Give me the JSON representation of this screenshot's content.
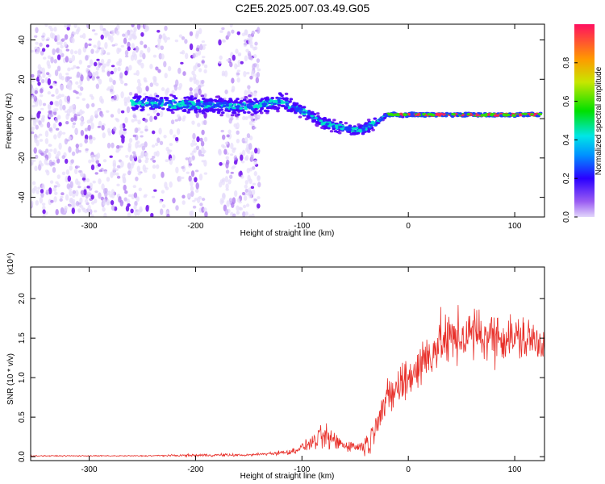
{
  "title": "C2E5.2025.007.03.49.G05",
  "chart_data": [
    {
      "type": "heatmap",
      "xlabel": "Height of straight line (km)",
      "ylabel": "Frequency (Hz)",
      "xlim": [
        -355,
        128
      ],
      "ylim": [
        -50,
        48
      ],
      "xticks": [
        -300,
        -200,
        -100,
        0,
        100
      ],
      "yticks": [
        -40,
        -20,
        0,
        20,
        40
      ],
      "colorbar": {
        "label": "Normalized spectral amplitude",
        "range": [
          0,
          1
        ],
        "ticks": [
          "0.0",
          "0.2",
          "0.4",
          "0.6",
          "0.8"
        ]
      },
      "ridge": {
        "x": [
          -260,
          -200,
          -150,
          -120,
          -100,
          -80,
          -60,
          -45,
          -30,
          -20,
          0,
          50,
          100,
          128
        ],
        "freq": [
          8,
          7,
          6,
          9,
          4,
          -2,
          -5,
          -6,
          -2,
          2,
          2,
          2,
          2,
          2
        ]
      }
    },
    {
      "type": "line",
      "xlabel": "Height of straight line (km)",
      "ylabel": "SNR (10 * v/v)",
      "yscale_label": "(x10⁴)",
      "xlim": [
        -355,
        128
      ],
      "ylim": [
        -0.05,
        2.4
      ],
      "xticks": [
        -300,
        -200,
        -100,
        0,
        100
      ],
      "yticks": [
        "0.0",
        "0.5",
        "1.0",
        "1.5",
        "2.0"
      ],
      "series_color": "#e8302a",
      "envelope": {
        "x": [
          -355,
          -250,
          -180,
          -150,
          -110,
          -95,
          -80,
          -60,
          -45,
          -35,
          -30,
          -15,
          0,
          30,
          60,
          100,
          128
        ],
        "mean": [
          0.01,
          0.01,
          0.02,
          0.02,
          0.06,
          0.15,
          0.25,
          0.15,
          0.12,
          0.2,
          0.5,
          0.8,
          1.0,
          1.45,
          1.55,
          1.5,
          1.45
        ],
        "spread": [
          0.01,
          0.01,
          0.03,
          0.02,
          0.05,
          0.1,
          0.25,
          0.12,
          0.1,
          0.3,
          0.3,
          0.4,
          0.45,
          0.5,
          0.5,
          0.45,
          0.4
        ]
      }
    }
  ]
}
